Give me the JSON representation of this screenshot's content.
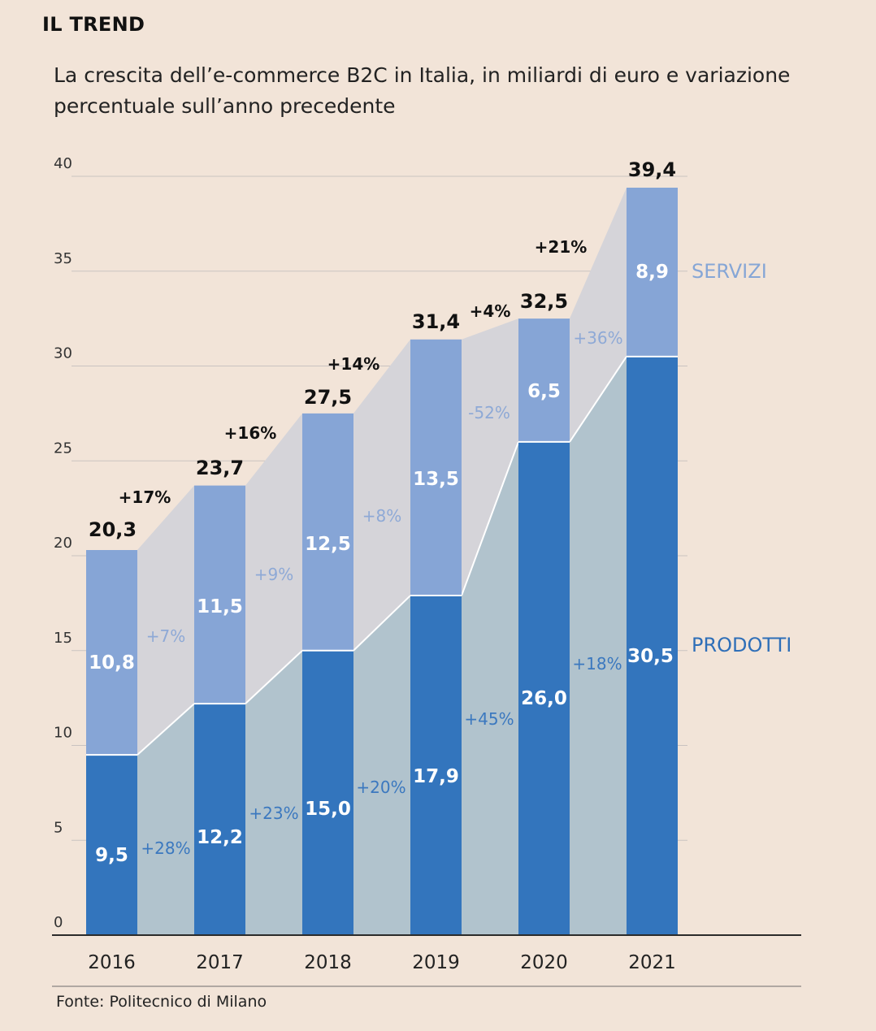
{
  "header": {
    "kicker": "IL TREND",
    "subtitle": "La crescita dell’e-commerce B2C in Italia, in miliardi di euro e variazione percentuale sull’anno precedente"
  },
  "footer": {
    "source": "Fonte: Politecnico di Milano"
  },
  "colors": {
    "prodotti": "#3375bd",
    "servizi": "#86a5d6",
    "area_prodotti": "#b1c3cd",
    "area_servizi": "#d5d4d9",
    "background": "#f2e4d8"
  },
  "chart_data": {
    "type": "bar",
    "stacked": true,
    "title": "La crescita dell’e-commerce B2C in Italia, in miliardi di euro e variazione percentuale sull’anno precedente",
    "xlabel": "",
    "ylabel": "",
    "ylim": [
      0,
      40
    ],
    "yticks": [
      0,
      5,
      10,
      15,
      20,
      25,
      30,
      35,
      40
    ],
    "grid": true,
    "categories": [
      "2016",
      "2017",
      "2018",
      "2019",
      "2020",
      "2021"
    ],
    "series": [
      {
        "name": "PRODOTTI",
        "values": [
          9.5,
          12.2,
          15.0,
          17.9,
          26.0,
          30.5
        ],
        "labels": [
          "9,5",
          "12,2",
          "15,0",
          "17,9",
          "26,0",
          "30,5"
        ],
        "growth": [
          "+28%",
          "+23%",
          "+20%",
          "+45%",
          "+18%"
        ]
      },
      {
        "name": "SERVIZI",
        "values": [
          10.8,
          11.5,
          12.5,
          13.5,
          6.5,
          8.9
        ],
        "labels": [
          "10,8",
          "11,5",
          "12,5",
          "13,5",
          "6,5",
          "8,9"
        ],
        "growth": [
          "+7%",
          "+9%",
          "+8%",
          "-52%",
          "+36%"
        ]
      }
    ],
    "totals": [
      20.3,
      23.7,
      27.5,
      31.4,
      32.5,
      39.4
    ],
    "total_labels": [
      "20,3",
      "23,7",
      "27,5",
      "31,4",
      "32,5",
      "39,4"
    ],
    "total_growth": [
      "+17%",
      "+16%",
      "+14%",
      "+4%",
      "+21%"
    ],
    "legend": {
      "servizi": "SERVIZI",
      "prodotti": "PRODOTTI"
    }
  }
}
